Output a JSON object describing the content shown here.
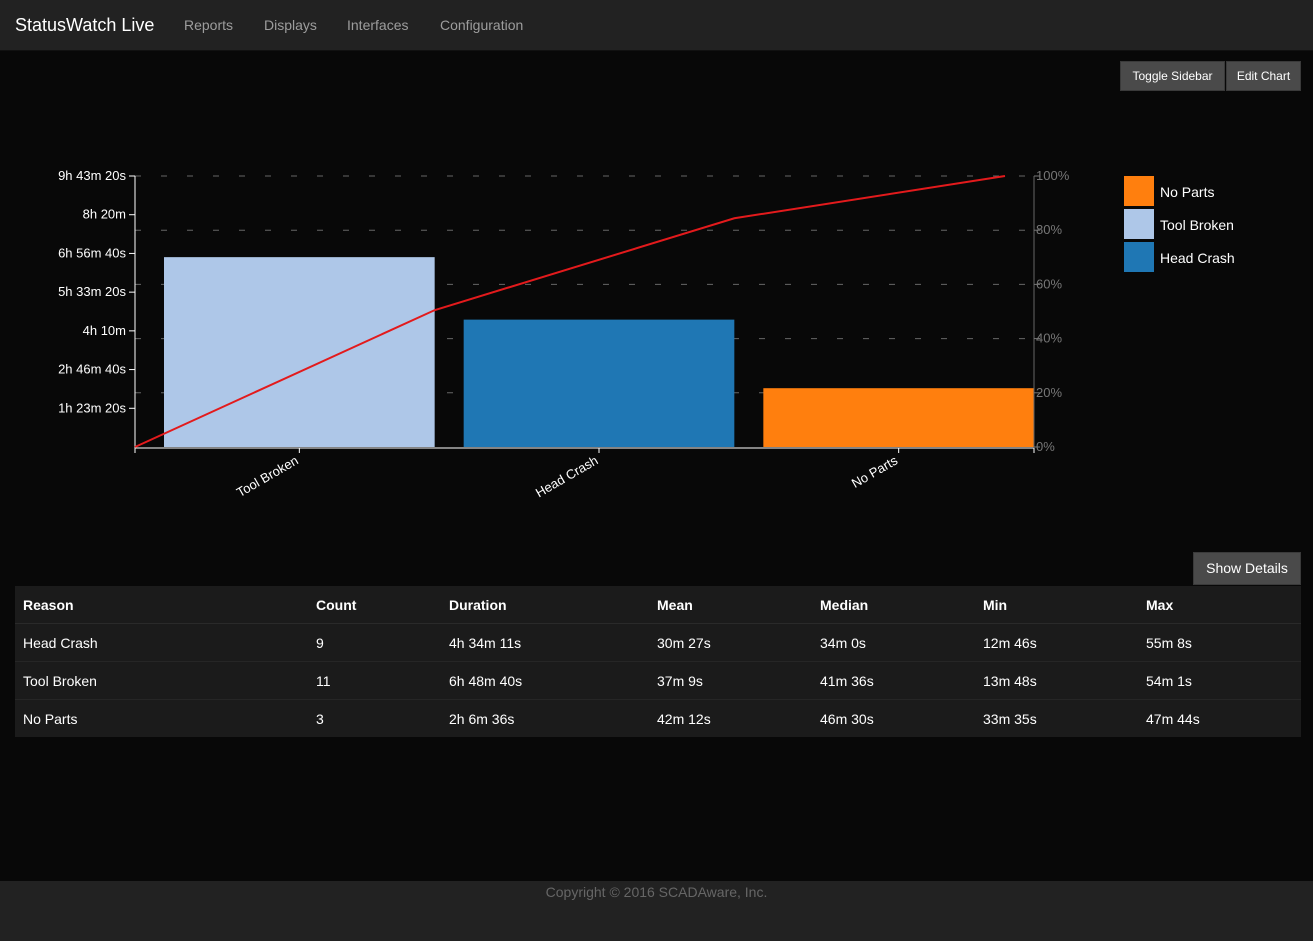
{
  "navbar": {
    "brand": "StatusWatch Live",
    "items": [
      "Reports",
      "Displays",
      "Interfaces",
      "Configuration"
    ]
  },
  "toolbar": {
    "toggle_sidebar_label": "Toggle Sidebar",
    "edit_chart_label": "Edit Chart",
    "show_details_label": "Show Details"
  },
  "chart_data": {
    "type": "bar",
    "categories": [
      "Tool Broken",
      "Head Crash",
      "No Parts"
    ],
    "values_seconds": [
      24520,
      16451,
      7596
    ],
    "cumulative_percent": [
      0,
      50.5,
      84.4,
      100
    ],
    "y_ticks": [
      "1h 23m 20s",
      "2h 46m 40s",
      "4h 10m",
      "5h 33m 20s",
      "6h 56m 40s",
      "8h 20m",
      "9h 43m 20s"
    ],
    "y_tick_values_seconds": [
      5000,
      10000,
      15000,
      20000,
      25000,
      30000,
      35000
    ],
    "y_max_seconds": 35000,
    "y2_ticks": [
      "0%",
      "20%",
      "40%",
      "60%",
      "80%",
      "100%"
    ],
    "y2_tick_values": [
      0,
      20,
      40,
      60,
      80,
      100
    ],
    "grid": "dashed-horizontal",
    "legend_placement": "top-right",
    "legend": [
      {
        "label": "No Parts",
        "color": "#ff7f0e"
      },
      {
        "label": "Tool Broken",
        "color": "#aec7e8"
      },
      {
        "label": "Head Crash",
        "color": "#1f77b4"
      }
    ],
    "bar_colors": [
      "#aec7e8",
      "#1f77b4",
      "#ff7f0e"
    ],
    "line_color": "#e31a1c"
  },
  "table": {
    "headers": [
      "Reason",
      "Count",
      "Duration",
      "Mean",
      "Median",
      "Min",
      "Max"
    ],
    "rows": [
      [
        "Head Crash",
        "9",
        "4h 34m 11s",
        "30m 27s",
        "34m 0s",
        "12m 46s",
        "55m 8s"
      ],
      [
        "Tool Broken",
        "11",
        "6h 48m 40s",
        "37m 9s",
        "41m 36s",
        "13m 48s",
        "54m 1s"
      ],
      [
        "No Parts",
        "3",
        "2h 6m 36s",
        "42m 12s",
        "46m 30s",
        "33m 35s",
        "47m 44s"
      ]
    ]
  },
  "footer": {
    "copyright": "Copyright © 2016 SCADAware, Inc."
  }
}
